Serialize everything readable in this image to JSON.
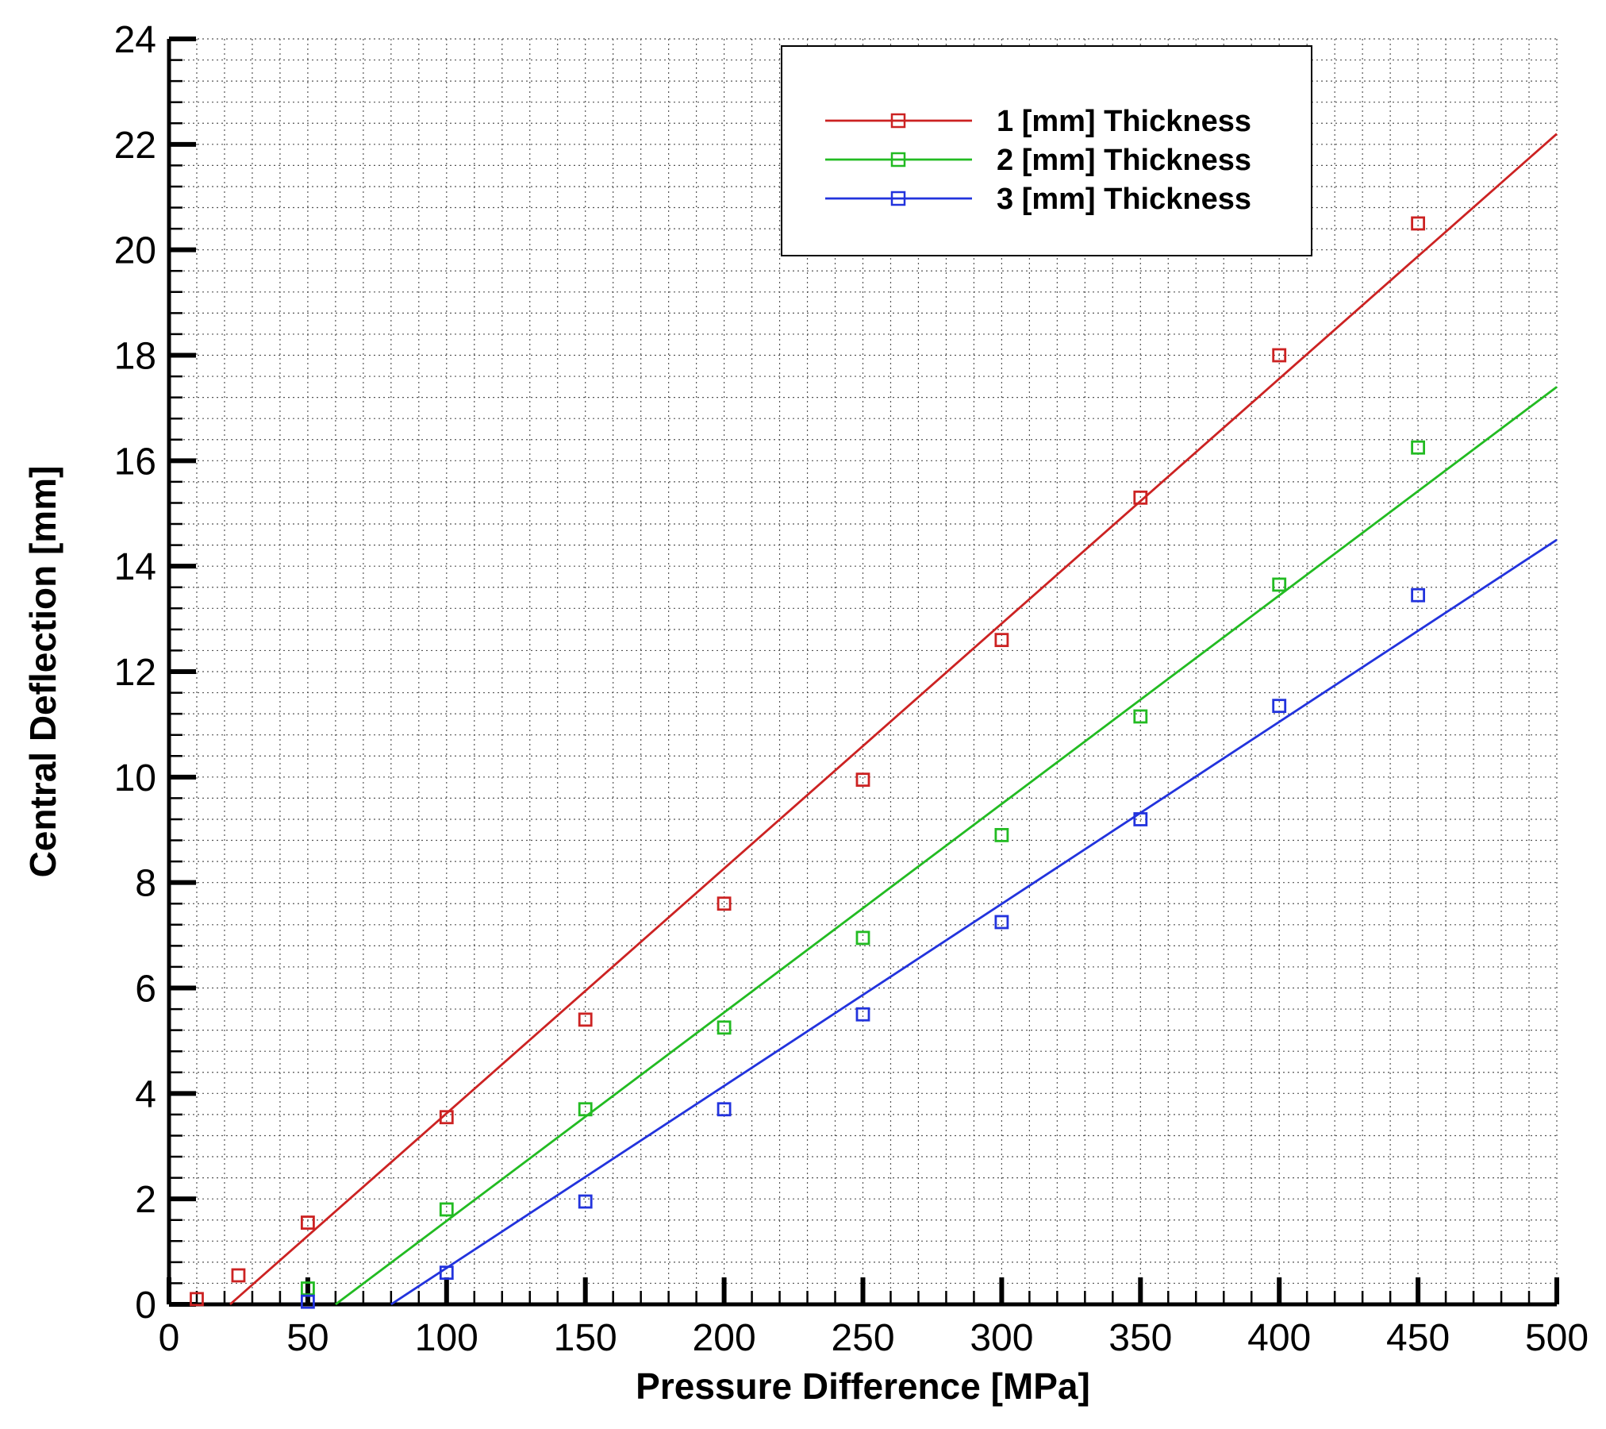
{
  "chart_data": {
    "type": "scatter",
    "title": "",
    "xlabel": "Pressure Difference [MPa]",
    "ylabel": "Central Deflection [mm]",
    "xlim": [
      0,
      500
    ],
    "ylim": [
      0,
      24
    ],
    "x_ticks": [
      0,
      50,
      100,
      150,
      200,
      250,
      300,
      350,
      400,
      450,
      500
    ],
    "y_ticks": [
      0,
      2,
      4,
      6,
      8,
      10,
      12,
      14,
      16,
      18,
      20,
      22,
      24
    ],
    "x_tick_labels": [
      "0",
      "50",
      "100",
      "150",
      "200",
      "250",
      "300",
      "350",
      "400",
      "450",
      "500"
    ],
    "y_tick_labels": [
      "0",
      "2",
      "4",
      "6",
      "8",
      "10",
      "12",
      "14",
      "16",
      "18",
      "20",
      "22",
      "24"
    ],
    "grid": true,
    "legend_position": "top-center-right",
    "series": [
      {
        "name": "1 [mm] Thickness",
        "color": "#cc2222",
        "points": [
          [
            10,
            0.1
          ],
          [
            25,
            0.55
          ],
          [
            50,
            1.55
          ],
          [
            100,
            3.55
          ],
          [
            150,
            5.4
          ],
          [
            200,
            7.6
          ],
          [
            250,
            9.95
          ],
          [
            300,
            12.6
          ],
          [
            350,
            15.3
          ],
          [
            400,
            18.0
          ],
          [
            450,
            20.5
          ]
        ],
        "fit_line": [
          [
            22,
            0
          ],
          [
            500,
            22.2
          ]
        ]
      },
      {
        "name": "2 [mm] Thickness",
        "color": "#22bb22",
        "points": [
          [
            50,
            0.3
          ],
          [
            100,
            1.8
          ],
          [
            150,
            3.7
          ],
          [
            200,
            5.25
          ],
          [
            250,
            6.95
          ],
          [
            300,
            8.9
          ],
          [
            350,
            11.15
          ],
          [
            400,
            13.65
          ],
          [
            450,
            16.25
          ]
        ],
        "fit_line": [
          [
            60,
            0
          ],
          [
            500,
            17.4
          ]
        ]
      },
      {
        "name": "3 [mm] Thickness",
        "color": "#2233dd",
        "points": [
          [
            50,
            0.05
          ],
          [
            100,
            0.6
          ],
          [
            150,
            1.95
          ],
          [
            200,
            3.7
          ],
          [
            250,
            5.5
          ],
          [
            300,
            7.25
          ],
          [
            350,
            9.2
          ],
          [
            400,
            11.35
          ],
          [
            450,
            13.45
          ]
        ],
        "fit_line": [
          [
            80,
            0
          ],
          [
            500,
            14.5
          ]
        ]
      }
    ]
  }
}
